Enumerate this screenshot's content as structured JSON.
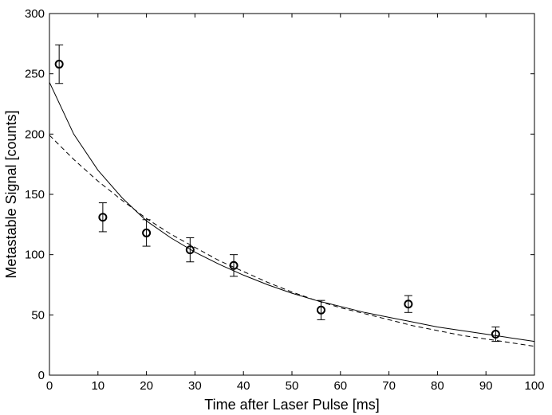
{
  "chart_data": {
    "type": "scatter",
    "xlabel": "Time after Laser Pulse [ms]",
    "ylabel": "Metastable Signal [counts]",
    "xlim": [
      0,
      100
    ],
    "ylim": [
      0,
      300
    ],
    "x_ticks": [
      0,
      10,
      20,
      30,
      40,
      50,
      60,
      70,
      80,
      90,
      100
    ],
    "y_ticks": [
      0,
      50,
      100,
      150,
      200,
      250,
      300
    ],
    "grid": false,
    "legend": "none",
    "series": [
      {
        "kind": "points-with-errorbars",
        "marker": "open-circle",
        "color": "#000000",
        "points": [
          {
            "x": 2,
            "y": 258,
            "err_low": 16,
            "err_high": 16
          },
          {
            "x": 11,
            "y": 131,
            "err_low": 12,
            "err_high": 12
          },
          {
            "x": 20,
            "y": 118,
            "err_low": 11,
            "err_high": 11
          },
          {
            "x": 29,
            "y": 104,
            "err_low": 10,
            "err_high": 10
          },
          {
            "x": 38,
            "y": 91,
            "err_low": 9,
            "err_high": 9
          },
          {
            "x": 56,
            "y": 54,
            "err_low": 8,
            "err_high": 8
          },
          {
            "x": 74,
            "y": 59,
            "err_low": 7,
            "err_high": 7
          },
          {
            "x": 92,
            "y": 34,
            "err_low": 6,
            "err_high": 6
          }
        ]
      },
      {
        "kind": "fit-curve",
        "style": "solid",
        "color": "#000000",
        "x": [
          0,
          5,
          10,
          15,
          20,
          25,
          30,
          35,
          40,
          45,
          50,
          55,
          60,
          65,
          70,
          75,
          80,
          85,
          90,
          95,
          100
        ],
        "y": [
          243,
          200,
          170,
          147,
          128,
          114,
          102,
          92,
          83,
          75,
          68,
          62,
          57,
          52,
          48,
          44,
          40,
          37,
          34,
          31,
          28
        ]
      },
      {
        "kind": "fit-curve",
        "style": "dashed",
        "color": "#000000",
        "x": [
          0,
          5,
          10,
          15,
          20,
          25,
          30,
          35,
          40,
          45,
          50,
          55,
          60,
          65,
          70,
          75,
          80,
          85,
          90,
          95,
          100
        ],
        "y": [
          199,
          179,
          161,
          145,
          130,
          117,
          106,
          95,
          86,
          77,
          69,
          62,
          56,
          51,
          46,
          41,
          37,
          33,
          30,
          27,
          24
        ]
      }
    ]
  }
}
